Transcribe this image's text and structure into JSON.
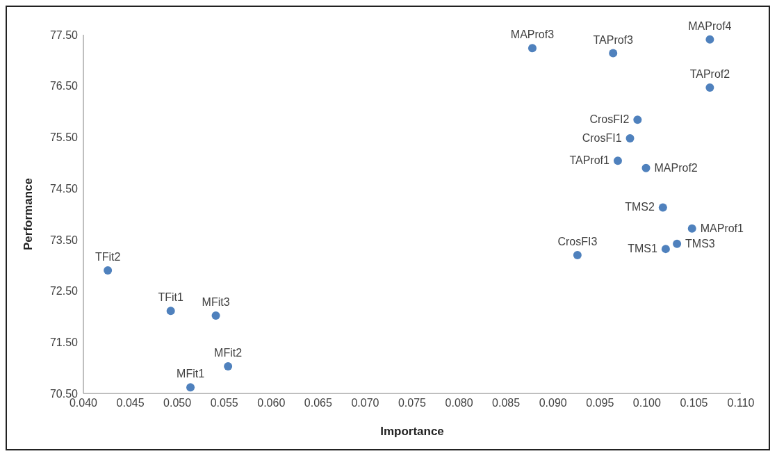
{
  "chart_data": {
    "type": "scatter",
    "xlabel": "Importance",
    "ylabel": "Performance",
    "marker": "circle",
    "grid": false,
    "xlim": [
      0.04,
      0.11
    ],
    "xticks": [
      {
        "value": 0.04,
        "label": "0.040"
      },
      {
        "value": 0.045,
        "label": "0.045"
      },
      {
        "value": 0.05,
        "label": "0.050"
      },
      {
        "value": 0.055,
        "label": "0.055"
      },
      {
        "value": 0.06,
        "label": "0.060"
      },
      {
        "value": 0.065,
        "label": "0.065"
      },
      {
        "value": 0.07,
        "label": "0.070"
      },
      {
        "value": 0.075,
        "label": "0.075"
      },
      {
        "value": 0.08,
        "label": "0.080"
      },
      {
        "value": 0.085,
        "label": "0.085"
      },
      {
        "value": 0.09,
        "label": "0.090"
      },
      {
        "value": 0.095,
        "label": "0.095"
      },
      {
        "value": 0.1,
        "label": "0.100"
      },
      {
        "value": 0.105,
        "label": "0.105"
      },
      {
        "value": 0.11,
        "label": "0.110"
      }
    ],
    "ylim": [
      70.5,
      77.5
    ],
    "yticks": [
      {
        "value": 70.5,
        "label": "70.50"
      },
      {
        "value": 71.5,
        "label": "71.50"
      },
      {
        "value": 72.5,
        "label": "72.50"
      },
      {
        "value": 73.5,
        "label": "73.50"
      },
      {
        "value": 74.5,
        "label": "74.50"
      },
      {
        "value": 75.5,
        "label": "75.50"
      },
      {
        "value": 76.5,
        "label": "76.50"
      },
      {
        "value": 77.5,
        "label": "77.50"
      }
    ],
    "series": [
      {
        "color": "#4f81bd",
        "x": [
          0.0878,
          0.0964,
          0.1067,
          0.1067,
          0.099,
          0.0982,
          0.0969,
          0.0999,
          0.1017,
          0.1048,
          0.1032,
          0.102,
          0.0926,
          0.0426,
          0.0493,
          0.0541,
          0.0554,
          0.0514
        ],
        "values": [
          77.24,
          77.14,
          77.41,
          76.47,
          75.84,
          75.48,
          75.04,
          74.9,
          74.13,
          73.72,
          73.42,
          73.32,
          73.2,
          72.9,
          72.11,
          72.02,
          71.03,
          70.62
        ]
      }
    ],
    "annotations": [
      {
        "text": "MAProf3",
        "x": 0.0878,
        "y": 77.24
      },
      {
        "text": "TAProf3",
        "x": 0.0964,
        "y": 77.14
      },
      {
        "text": "MAProf4",
        "x": 0.1067,
        "y": 77.41
      },
      {
        "text": "TAProf2",
        "x": 0.1067,
        "y": 76.47
      },
      {
        "text": "CrosFI2",
        "x": 0.099,
        "y": 75.84
      },
      {
        "text": "CrosFI1",
        "x": 0.0982,
        "y": 75.48
      },
      {
        "text": "TAProf1",
        "x": 0.0969,
        "y": 75.04
      },
      {
        "text": "MAProf2",
        "x": 0.0999,
        "y": 74.9
      },
      {
        "text": "TMS2",
        "x": 0.1017,
        "y": 74.13
      },
      {
        "text": "MAProf1",
        "x": 0.1048,
        "y": 73.72
      },
      {
        "text": "TMS3",
        "x": 0.1032,
        "y": 73.42
      },
      {
        "text": "TMS1",
        "x": 0.102,
        "y": 73.32
      },
      {
        "text": "CrosFI3",
        "x": 0.0926,
        "y": 73.2
      },
      {
        "text": "TFit2",
        "x": 0.0426,
        "y": 72.9
      },
      {
        "text": "TFit1",
        "x": 0.0493,
        "y": 72.11
      },
      {
        "text": "MFit3",
        "x": 0.0541,
        "y": 72.02
      },
      {
        "text": "MFit2",
        "x": 0.0554,
        "y": 71.03
      },
      {
        "text": "MFit1",
        "x": 0.0514,
        "y": 70.62
      }
    ]
  }
}
